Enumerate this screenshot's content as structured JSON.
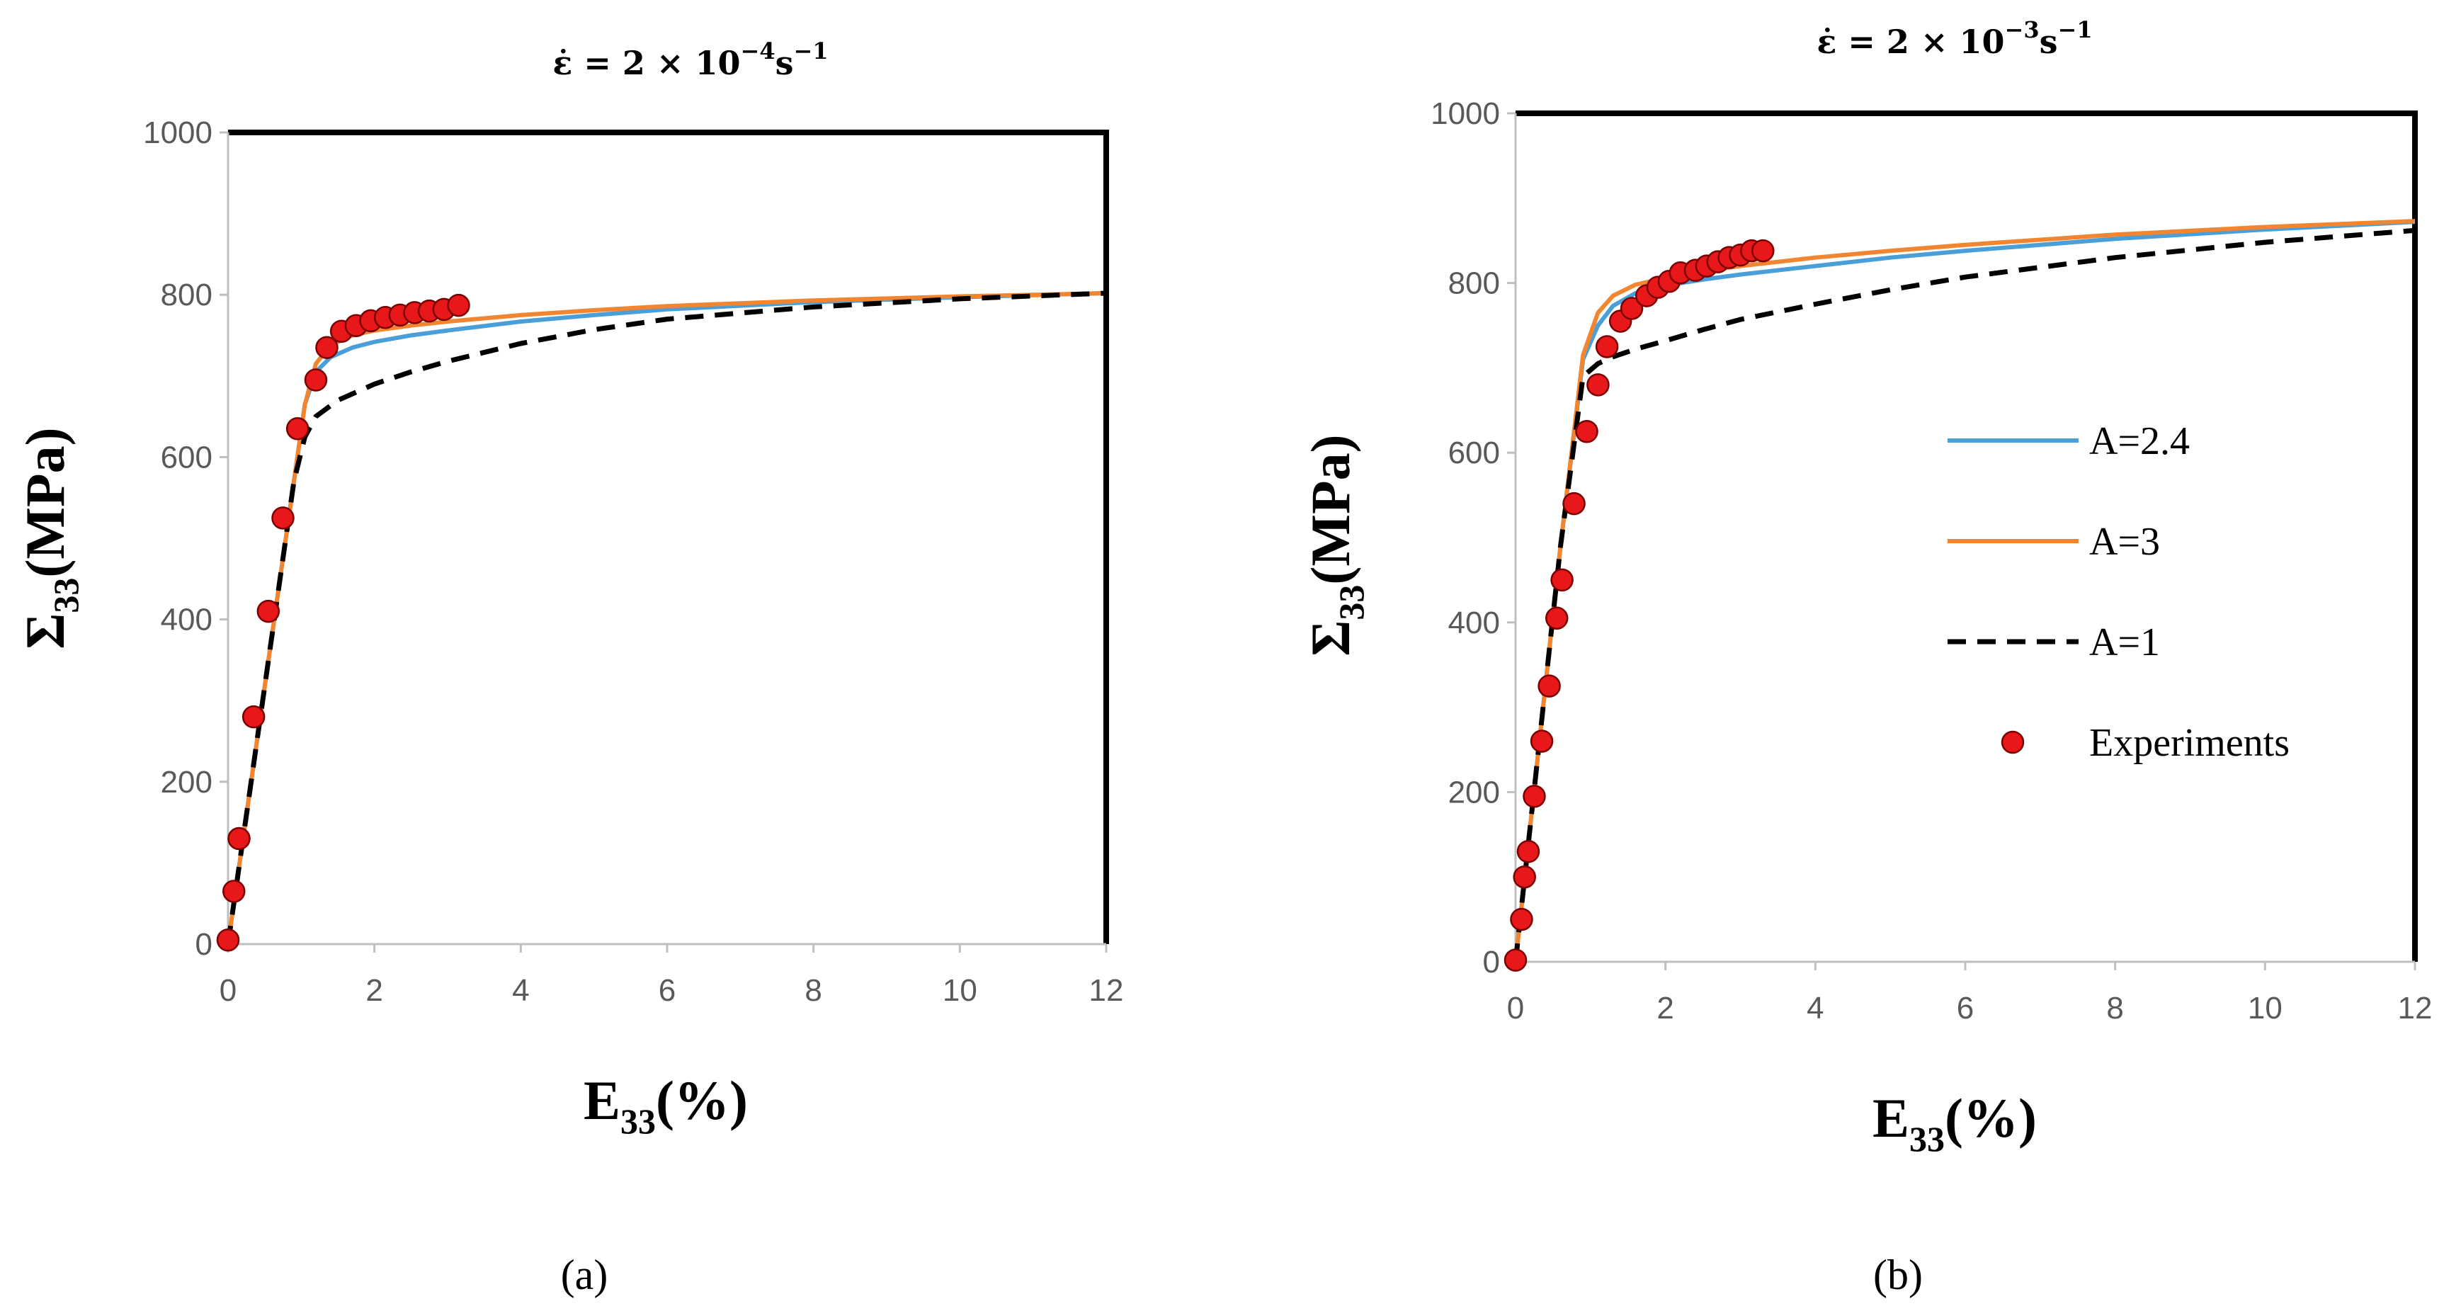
{
  "chart_data": [
    {
      "type": "line",
      "panel_label": "(a)",
      "title": {
        "base": "ε̇ = 2 × 10",
        "exp": "−4",
        "tail": "s",
        "tail_exp": "−1"
      },
      "xlabel": {
        "main": "E",
        "sub": "33",
        "rest": "(%)"
      },
      "ylabel": {
        "main": "Σ",
        "sub": "33",
        "rest": "(MPa)"
      },
      "xlim": [
        0,
        12
      ],
      "ylim": [
        0,
        1000
      ],
      "xticks": [
        "0",
        "2",
        "4",
        "6",
        "8",
        "10",
        "12"
      ],
      "yticks": [
        "0",
        "200",
        "400",
        "600",
        "800",
        "1000"
      ],
      "series": [
        {
          "name": "A=2.4",
          "color": "#4a9fd8",
          "style": "solid",
          "x": [
            0,
            0.3,
            0.6,
            0.9,
            1.05,
            1.2,
            1.4,
            1.7,
            2.0,
            2.5,
            3,
            4,
            5,
            6,
            8,
            10,
            12
          ],
          "y": [
            0,
            190,
            380,
            570,
            665,
            705,
            723,
            735,
            742,
            750,
            756,
            767,
            775,
            782,
            791,
            797,
            802
          ]
        },
        {
          "name": "A=3",
          "color": "#f28530",
          "style": "solid",
          "x": [
            0,
            0.3,
            0.6,
            0.9,
            1.05,
            1.2,
            1.4,
            1.7,
            2.0,
            2.5,
            3,
            4,
            5,
            6,
            8,
            10,
            12
          ],
          "y": [
            0,
            190,
            380,
            570,
            665,
            715,
            738,
            750,
            756,
            762,
            767,
            775,
            781,
            786,
            793,
            798,
            802
          ]
        },
        {
          "name": "A=1",
          "color": "#000000",
          "style": "dashed",
          "x": [
            0,
            0.3,
            0.6,
            0.9,
            1.05,
            1.2,
            1.5,
            2.0,
            2.5,
            3,
            4,
            5,
            6,
            8,
            10,
            12
          ],
          "y": [
            0,
            190,
            380,
            570,
            625,
            650,
            670,
            690,
            705,
            718,
            740,
            757,
            770,
            785,
            795,
            802
          ]
        },
        {
          "name": "Experiments",
          "color": "#e8181a",
          "style": "markers",
          "x": [
            0.0,
            0.08,
            0.15,
            0.35,
            0.55,
            0.75,
            0.95,
            1.2,
            1.35,
            1.55,
            1.75,
            1.95,
            2.15,
            2.35,
            2.55,
            2.75,
            2.95,
            3.15
          ],
          "y": [
            5,
            65,
            130,
            280,
            410,
            525,
            635,
            695,
            735,
            755,
            762,
            768,
            772,
            775,
            778,
            780,
            782,
            787
          ]
        }
      ]
    },
    {
      "type": "line",
      "panel_label": "(b)",
      "title": {
        "base": "ε̇ = 2 × 10",
        "exp": "−3",
        "tail": "s",
        "tail_exp": "−1"
      },
      "xlabel": {
        "main": "E",
        "sub": "33",
        "rest": "(%)"
      },
      "ylabel": {
        "main": "Σ",
        "sub": "33",
        "rest": "(MPa)"
      },
      "xlim": [
        0,
        12
      ],
      "ylim": [
        0,
        1000
      ],
      "xticks": [
        "0",
        "2",
        "4",
        "6",
        "8",
        "10",
        "12"
      ],
      "yticks": [
        "0",
        "200",
        "400",
        "600",
        "800",
        "1000"
      ],
      "legend": [
        "A=2.4",
        "A=3",
        "A=1",
        "Experiments"
      ],
      "series": [
        {
          "name": "A=2.4",
          "color": "#4a9fd8",
          "style": "solid",
          "x": [
            0,
            0.3,
            0.6,
            0.9,
            1.1,
            1.3,
            1.6,
            2.0,
            2.5,
            3,
            4,
            5,
            6,
            8,
            10,
            12
          ],
          "y": [
            0,
            245,
            490,
            710,
            750,
            773,
            788,
            797,
            804,
            810,
            820,
            830,
            838,
            852,
            863,
            872
          ]
        },
        {
          "name": "A=3",
          "color": "#f28530",
          "style": "solid",
          "x": [
            0,
            0.3,
            0.6,
            0.9,
            1.1,
            1.3,
            1.6,
            2.0,
            2.5,
            3,
            4,
            5,
            6,
            8,
            10,
            12
          ],
          "y": [
            0,
            245,
            490,
            715,
            765,
            785,
            798,
            806,
            814,
            820,
            830,
            838,
            845,
            857,
            866,
            873
          ]
        },
        {
          "name": "A=1",
          "color": "#000000",
          "style": "dashed",
          "x": [
            0,
            0.3,
            0.6,
            0.9,
            1.1,
            1.3,
            1.6,
            2.0,
            2.5,
            3,
            4,
            5,
            6,
            8,
            10,
            12
          ],
          "y": [
            0,
            245,
            490,
            690,
            705,
            713,
            722,
            732,
            745,
            757,
            775,
            792,
            807,
            830,
            848,
            862
          ]
        },
        {
          "name": "Experiments",
          "color": "#e8181a",
          "style": "markers",
          "x": [
            0.0,
            0.08,
            0.12,
            0.17,
            0.25,
            0.35,
            0.45,
            0.55,
            0.62,
            0.78,
            0.95,
            1.1,
            1.22,
            1.4,
            1.55,
            1.75,
            1.9,
            2.05,
            2.2,
            2.4,
            2.55,
            2.7,
            2.85,
            3.0,
            3.15,
            3.3
          ],
          "y": [
            2,
            50,
            100,
            130,
            195,
            260,
            325,
            405,
            450,
            540,
            625,
            680,
            725,
            755,
            770,
            785,
            795,
            802,
            812,
            815,
            820,
            825,
            830,
            833,
            838,
            838
          ]
        }
      ]
    }
  ]
}
